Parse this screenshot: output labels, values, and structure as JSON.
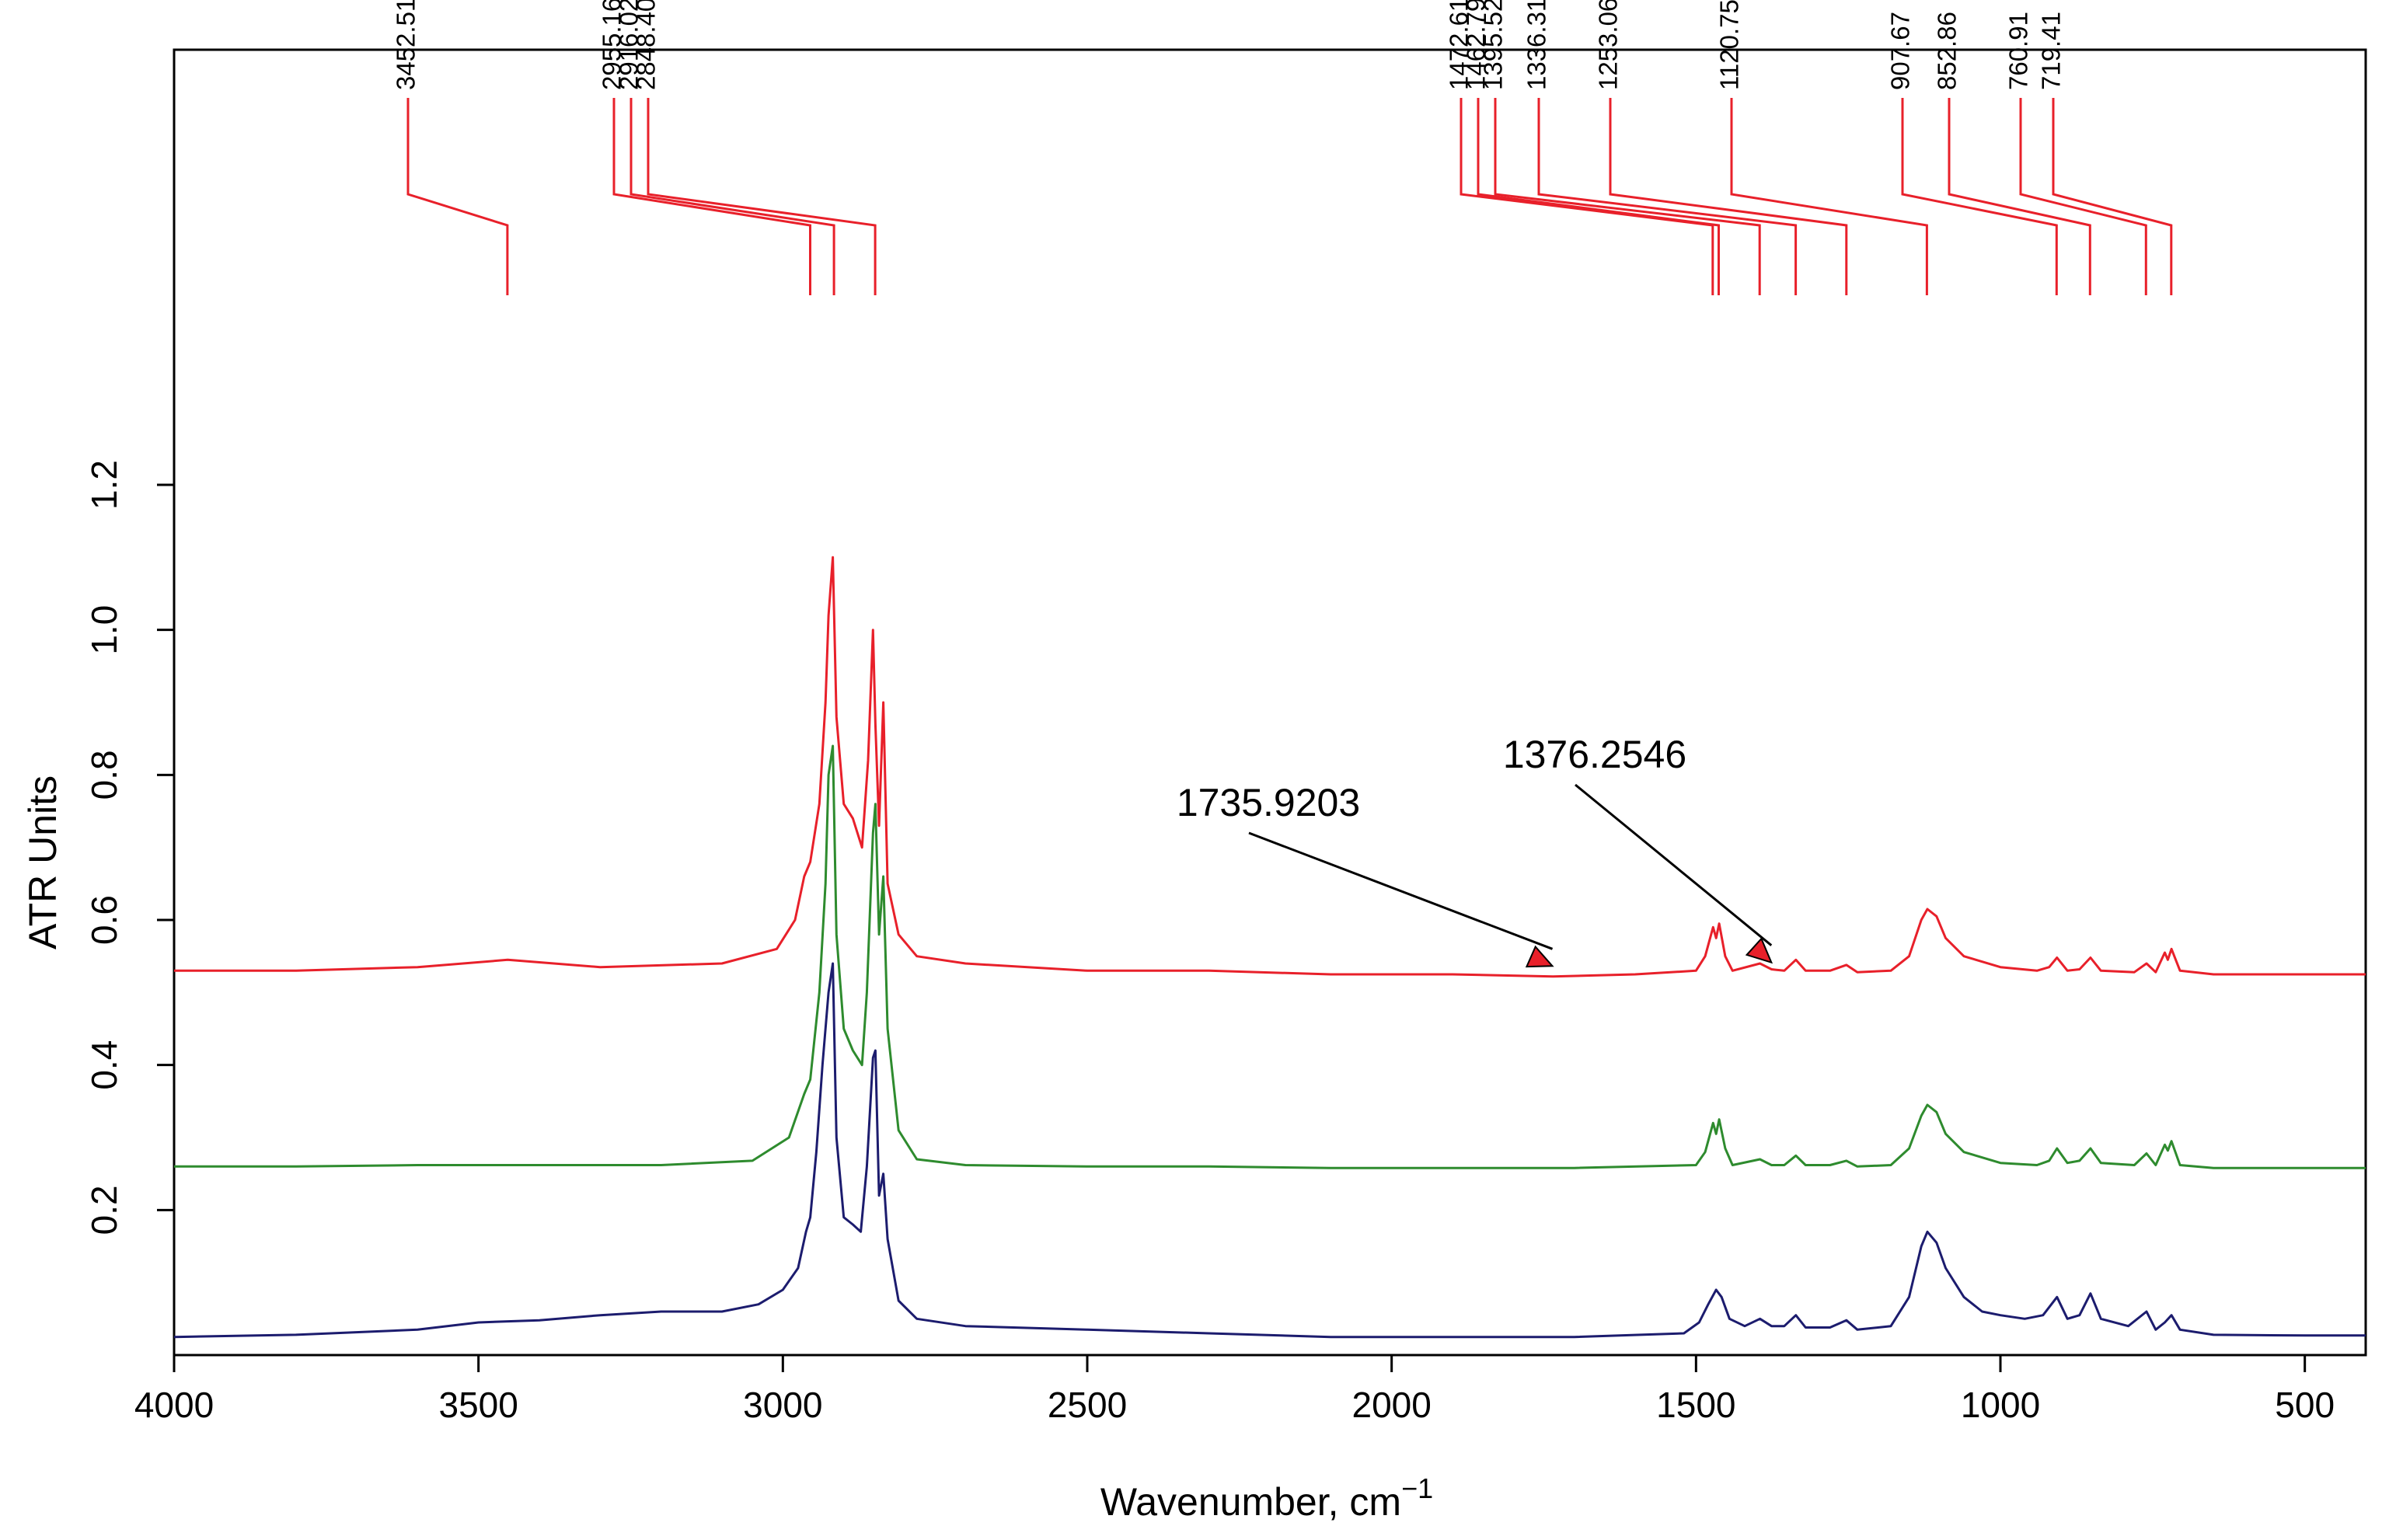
{
  "chart_data": {
    "type": "line",
    "xlabel": "Wavenumber, cm",
    "xlabel_superscript": "−1",
    "ylabel": "ATR Units",
    "xlim": [
      4000,
      400
    ],
    "ylim": [
      0.0,
      1.8
    ],
    "x_ticks": [
      4000,
      3500,
      3000,
      2500,
      2000,
      1500,
      1000,
      500
    ],
    "y_ticks": [
      0.2,
      0.4,
      0.6,
      0.8,
      1.0,
      1.2
    ],
    "y_tick_labels": [
      "0.2",
      "0.4",
      "0.6",
      "0.8",
      "1.0",
      "1.2"
    ],
    "grid": false,
    "legend": "none",
    "peak_markers": [
      {
        "label": "3452.51",
        "x": 3452.51
      },
      {
        "label": "2955.16",
        "x": 2955.16
      },
      {
        "label": "2916.02",
        "x": 2916.02
      },
      {
        "label": "2848.40",
        "x": 2848.4
      },
      {
        "label": "1472.61",
        "x": 1472.61
      },
      {
        "label": "1462.79",
        "x": 1462.79
      },
      {
        "label": "1395.52",
        "x": 1395.52
      },
      {
        "label": "1336.31",
        "x": 1336.31
      },
      {
        "label": "1253.06",
        "x": 1253.06
      },
      {
        "label": "1120.75",
        "x": 1120.75
      },
      {
        "label": "907.67",
        "x": 907.67
      },
      {
        "label": "852.86",
        "x": 852.86
      },
      {
        "label": "760.91",
        "x": 760.91
      },
      {
        "label": "719.41",
        "x": 719.41
      }
    ],
    "annotations": [
      {
        "text": "1735.9203",
        "x": 1735.92,
        "y": 0.53
      },
      {
        "text": "1376.2546",
        "x": 1376.25,
        "y": 0.535
      }
    ],
    "series": [
      {
        "name": "red",
        "color": "#e8202a",
        "baseline": 0.525,
        "points": [
          [
            4000,
            0.53
          ],
          [
            3800,
            0.53
          ],
          [
            3600,
            0.535
          ],
          [
            3452,
            0.545
          ],
          [
            3300,
            0.535
          ],
          [
            3100,
            0.54
          ],
          [
            3010,
            0.56
          ],
          [
            2980,
            0.6
          ],
          [
            2965,
            0.66
          ],
          [
            2955,
            0.68
          ],
          [
            2940,
            0.76
          ],
          [
            2930,
            0.9
          ],
          [
            2925,
            1.02
          ],
          [
            2918,
            1.1
          ],
          [
            2912,
            0.88
          ],
          [
            2900,
            0.76
          ],
          [
            2885,
            0.74
          ],
          [
            2870,
            0.7
          ],
          [
            2860,
            0.82
          ],
          [
            2852,
            1.0
          ],
          [
            2848,
            0.87
          ],
          [
            2842,
            0.73
          ],
          [
            2835,
            0.9
          ],
          [
            2828,
            0.65
          ],
          [
            2810,
            0.58
          ],
          [
            2780,
            0.55
          ],
          [
            2700,
            0.54
          ],
          [
            2500,
            0.53
          ],
          [
            2300,
            0.53
          ],
          [
            2100,
            0.525
          ],
          [
            1900,
            0.525
          ],
          [
            1735,
            0.522
          ],
          [
            1600,
            0.525
          ],
          [
            1500,
            0.53
          ],
          [
            1485,
            0.55
          ],
          [
            1472,
            0.59
          ],
          [
            1467,
            0.575
          ],
          [
            1462,
            0.595
          ],
          [
            1452,
            0.55
          ],
          [
            1440,
            0.53
          ],
          [
            1395,
            0.54
          ],
          [
            1376,
            0.532
          ],
          [
            1355,
            0.53
          ],
          [
            1336,
            0.545
          ],
          [
            1320,
            0.53
          ],
          [
            1280,
            0.53
          ],
          [
            1253,
            0.538
          ],
          [
            1235,
            0.528
          ],
          [
            1180,
            0.53
          ],
          [
            1150,
            0.55
          ],
          [
            1130,
            0.6
          ],
          [
            1120,
            0.615
          ],
          [
            1105,
            0.605
          ],
          [
            1090,
            0.575
          ],
          [
            1060,
            0.55
          ],
          [
            1000,
            0.535
          ],
          [
            940,
            0.53
          ],
          [
            920,
            0.535
          ],
          [
            907,
            0.548
          ],
          [
            890,
            0.53
          ],
          [
            870,
            0.532
          ],
          [
            852,
            0.548
          ],
          [
            835,
            0.53
          ],
          [
            780,
            0.528
          ],
          [
            760,
            0.54
          ],
          [
            745,
            0.528
          ],
          [
            730,
            0.555
          ],
          [
            725,
            0.545
          ],
          [
            719,
            0.56
          ],
          [
            705,
            0.53
          ],
          [
            650,
            0.525
          ],
          [
            500,
            0.525
          ],
          [
            400,
            0.525
          ]
        ]
      },
      {
        "name": "green",
        "color": "#2e8b2e",
        "baseline": 0.258,
        "points": [
          [
            4000,
            0.26
          ],
          [
            3800,
            0.26
          ],
          [
            3600,
            0.262
          ],
          [
            3400,
            0.262
          ],
          [
            3200,
            0.262
          ],
          [
            3050,
            0.268
          ],
          [
            2990,
            0.3
          ],
          [
            2965,
            0.36
          ],
          [
            2955,
            0.38
          ],
          [
            2940,
            0.5
          ],
          [
            2930,
            0.65
          ],
          [
            2925,
            0.8
          ],
          [
            2918,
            0.84
          ],
          [
            2912,
            0.58
          ],
          [
            2900,
            0.45
          ],
          [
            2885,
            0.42
          ],
          [
            2870,
            0.4
          ],
          [
            2862,
            0.5
          ],
          [
            2852,
            0.72
          ],
          [
            2848,
            0.76
          ],
          [
            2842,
            0.58
          ],
          [
            2835,
            0.66
          ],
          [
            2828,
            0.45
          ],
          [
            2810,
            0.31
          ],
          [
            2780,
            0.27
          ],
          [
            2700,
            0.262
          ],
          [
            2500,
            0.26
          ],
          [
            2300,
            0.26
          ],
          [
            2100,
            0.258
          ],
          [
            1900,
            0.258
          ],
          [
            1700,
            0.258
          ],
          [
            1500,
            0.262
          ],
          [
            1485,
            0.28
          ],
          [
            1472,
            0.32
          ],
          [
            1467,
            0.305
          ],
          [
            1462,
            0.325
          ],
          [
            1452,
            0.285
          ],
          [
            1440,
            0.262
          ],
          [
            1395,
            0.27
          ],
          [
            1376,
            0.262
          ],
          [
            1355,
            0.262
          ],
          [
            1336,
            0.275
          ],
          [
            1320,
            0.262
          ],
          [
            1280,
            0.262
          ],
          [
            1253,
            0.268
          ],
          [
            1235,
            0.26
          ],
          [
            1180,
            0.262
          ],
          [
            1150,
            0.285
          ],
          [
            1130,
            0.33
          ],
          [
            1120,
            0.345
          ],
          [
            1105,
            0.335
          ],
          [
            1090,
            0.305
          ],
          [
            1060,
            0.28
          ],
          [
            1000,
            0.265
          ],
          [
            940,
            0.262
          ],
          [
            920,
            0.268
          ],
          [
            907,
            0.285
          ],
          [
            890,
            0.265
          ],
          [
            870,
            0.268
          ],
          [
            852,
            0.285
          ],
          [
            835,
            0.265
          ],
          [
            780,
            0.262
          ],
          [
            760,
            0.278
          ],
          [
            745,
            0.262
          ],
          [
            730,
            0.29
          ],
          [
            725,
            0.282
          ],
          [
            719,
            0.295
          ],
          [
            705,
            0.262
          ],
          [
            650,
            0.258
          ],
          [
            500,
            0.258
          ],
          [
            400,
            0.258
          ]
        ]
      },
      {
        "name": "navy",
        "color": "#1c1c6e",
        "baseline": 0.025,
        "points": [
          [
            4000,
            0.025
          ],
          [
            3800,
            0.028
          ],
          [
            3600,
            0.035
          ],
          [
            3500,
            0.045
          ],
          [
            3400,
            0.048
          ],
          [
            3300,
            0.055
          ],
          [
            3200,
            0.06
          ],
          [
            3100,
            0.06
          ],
          [
            3040,
            0.07
          ],
          [
            3000,
            0.09
          ],
          [
            2975,
            0.12
          ],
          [
            2962,
            0.17
          ],
          [
            2955,
            0.19
          ],
          [
            2945,
            0.28
          ],
          [
            2935,
            0.4
          ],
          [
            2925,
            0.5
          ],
          [
            2918,
            0.54
          ],
          [
            2912,
            0.3
          ],
          [
            2900,
            0.19
          ],
          [
            2885,
            0.18
          ],
          [
            2872,
            0.17
          ],
          [
            2862,
            0.26
          ],
          [
            2852,
            0.41
          ],
          [
            2848,
            0.42
          ],
          [
            2842,
            0.22
          ],
          [
            2835,
            0.25
          ],
          [
            2828,
            0.16
          ],
          [
            2810,
            0.075
          ],
          [
            2780,
            0.05
          ],
          [
            2700,
            0.04
          ],
          [
            2500,
            0.035
          ],
          [
            2300,
            0.03
          ],
          [
            2100,
            0.025
          ],
          [
            1900,
            0.025
          ],
          [
            1700,
            0.025
          ],
          [
            1520,
            0.03
          ],
          [
            1495,
            0.045
          ],
          [
            1480,
            0.07
          ],
          [
            1467,
            0.09
          ],
          [
            1458,
            0.08
          ],
          [
            1445,
            0.05
          ],
          [
            1420,
            0.04
          ],
          [
            1395,
            0.05
          ],
          [
            1376,
            0.04
          ],
          [
            1355,
            0.04
          ],
          [
            1336,
            0.055
          ],
          [
            1320,
            0.038
          ],
          [
            1280,
            0.038
          ],
          [
            1253,
            0.048
          ],
          [
            1235,
            0.035
          ],
          [
            1180,
            0.04
          ],
          [
            1150,
            0.08
          ],
          [
            1130,
            0.15
          ],
          [
            1120,
            0.17
          ],
          [
            1105,
            0.155
          ],
          [
            1090,
            0.12
          ],
          [
            1060,
            0.08
          ],
          [
            1030,
            0.06
          ],
          [
            1000,
            0.055
          ],
          [
            960,
            0.05
          ],
          [
            930,
            0.055
          ],
          [
            907,
            0.08
          ],
          [
            890,
            0.05
          ],
          [
            870,
            0.055
          ],
          [
            852,
            0.085
          ],
          [
            835,
            0.05
          ],
          [
            790,
            0.04
          ],
          [
            760,
            0.06
          ],
          [
            745,
            0.035
          ],
          [
            730,
            0.045
          ],
          [
            719,
            0.055
          ],
          [
            705,
            0.035
          ],
          [
            650,
            0.028
          ],
          [
            500,
            0.027
          ],
          [
            400,
            0.027
          ]
        ]
      }
    ]
  }
}
